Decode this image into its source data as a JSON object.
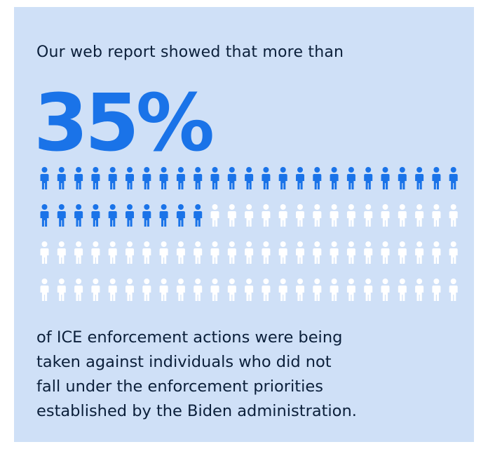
{
  "intro_text": "Our web report showed that more than",
  "stat_value": "35%",
  "icon_grid": {
    "icon": "person-icon",
    "columns": 25,
    "rows": 4,
    "total": 100,
    "highlighted": 35,
    "highlight_color": "#1a73e8",
    "base_color": "#ffffff"
  },
  "outro_lines": [
    "of ICE enforcement actions were being",
    "taken against individuals who did not",
    "fall under the enforcement priorities",
    "established by the Biden administration."
  ],
  "colors": {
    "background": "#cfe0f7",
    "text": "#0b1f3a",
    "accent": "#1a73e8"
  }
}
